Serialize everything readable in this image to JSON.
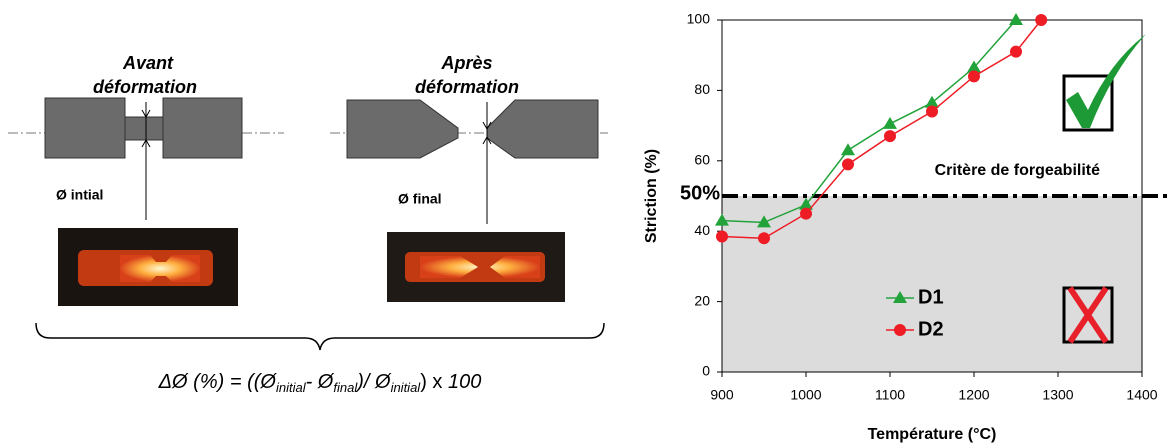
{
  "diagram": {
    "before_title": [
      "Avant",
      "déformation"
    ],
    "after_title": [
      "Après",
      "déformation"
    ],
    "initial_label": "Ø intial",
    "final_label": "Ø final",
    "formula": [
      "ΔØ (%) = ((Ø",
      "initial",
      "- Ø",
      "final",
      ")/ Ø",
      "initial",
      ") x ",
      "100"
    ]
  },
  "chart_data": {
    "type": "line",
    "x_label": "Température (°C)",
    "y_label": "Striction (%)",
    "xlim": [
      900,
      1400
    ],
    "xticks": [
      900,
      1000,
      1100,
      1200,
      1300,
      1400
    ],
    "ylim": [
      0,
      100
    ],
    "yticks": [
      0,
      20,
      40,
      60,
      80,
      100
    ],
    "threshold": {
      "value": 50,
      "label": "50%"
    },
    "annotation": "Critère de forgeabilité",
    "series": [
      {
        "name": "D1",
        "color": "#22a33a",
        "marker": "triangle",
        "x": [
          900,
          950,
          1000,
          1050,
          1100,
          1150,
          1200,
          1250
        ],
        "values": [
          43,
          42.5,
          47.5,
          63,
          70.5,
          76.5,
          86.5,
          100
        ]
      },
      {
        "name": "D2",
        "color": "#ee1c25",
        "marker": "circle",
        "x": [
          900,
          950,
          1000,
          1050,
          1100,
          1150,
          1200,
          1250,
          1280
        ],
        "values": [
          38.5,
          38,
          45,
          59,
          67,
          74,
          84,
          91,
          100
        ]
      }
    ]
  }
}
